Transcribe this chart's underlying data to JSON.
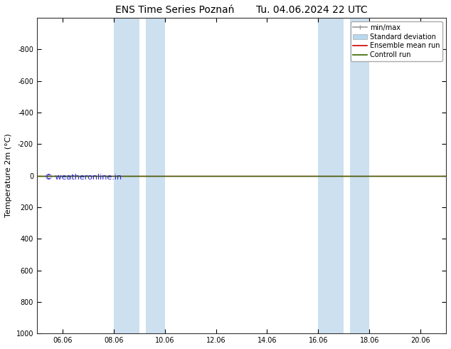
{
  "title": "ENS Time Series Poznań       Tu. 04.06.2024 22 UTC",
  "ylabel": "Temperature 2m (°C)",
  "ylim_top": -1000,
  "ylim_bottom": 1000,
  "yticks": [
    -800,
    -600,
    -400,
    -200,
    0,
    200,
    400,
    600,
    800,
    1000
  ],
  "xlim": [
    0,
    16
  ],
  "xtick_positions": [
    1,
    3,
    5,
    7,
    9,
    11,
    13,
    15
  ],
  "xtick_labels": [
    "06.06",
    "08.06",
    "10.06",
    "12.06",
    "14.06",
    "16.06",
    "18.06",
    "20.06"
  ],
  "shaded_bands": [
    {
      "x_start": 3.0,
      "x_end": 4.0
    },
    {
      "x_start": 4.25,
      "x_end": 5.0
    },
    {
      "x_start": 11.0,
      "x_end": 12.0
    },
    {
      "x_start": 12.25,
      "x_end": 13.0
    }
  ],
  "shaded_color": "#cce0f0",
  "hline_green_y": 0,
  "hline_red_y": 0,
  "hline_green_color": "#336600",
  "hline_red_color": "#cc0000",
  "hline_lw": 1.0,
  "watermark_text": "© weatheronline.in",
  "watermark_color": "#2222cc",
  "watermark_fontsize": 8,
  "legend_items": [
    {
      "label": "min/max",
      "color": "#999999",
      "lw": 1.2,
      "ls": "-",
      "type": "line_markers"
    },
    {
      "label": "Standard deviation",
      "color": "#b8d8ee",
      "lw": 6,
      "ls": "-",
      "type": "band"
    },
    {
      "label": "Ensemble mean run",
      "color": "#cc0000",
      "lw": 1.2,
      "ls": "-",
      "type": "line"
    },
    {
      "label": "Controll run",
      "color": "#336600",
      "lw": 1.2,
      "ls": "-",
      "type": "line"
    }
  ],
  "title_fontsize": 10,
  "ylabel_fontsize": 8,
  "tick_fontsize": 7,
  "legend_fontsize": 7,
  "bg_color": "#ffffff",
  "axes_bg_color": "#ffffff",
  "spine_color": "#333333",
  "spine_lw": 0.8
}
